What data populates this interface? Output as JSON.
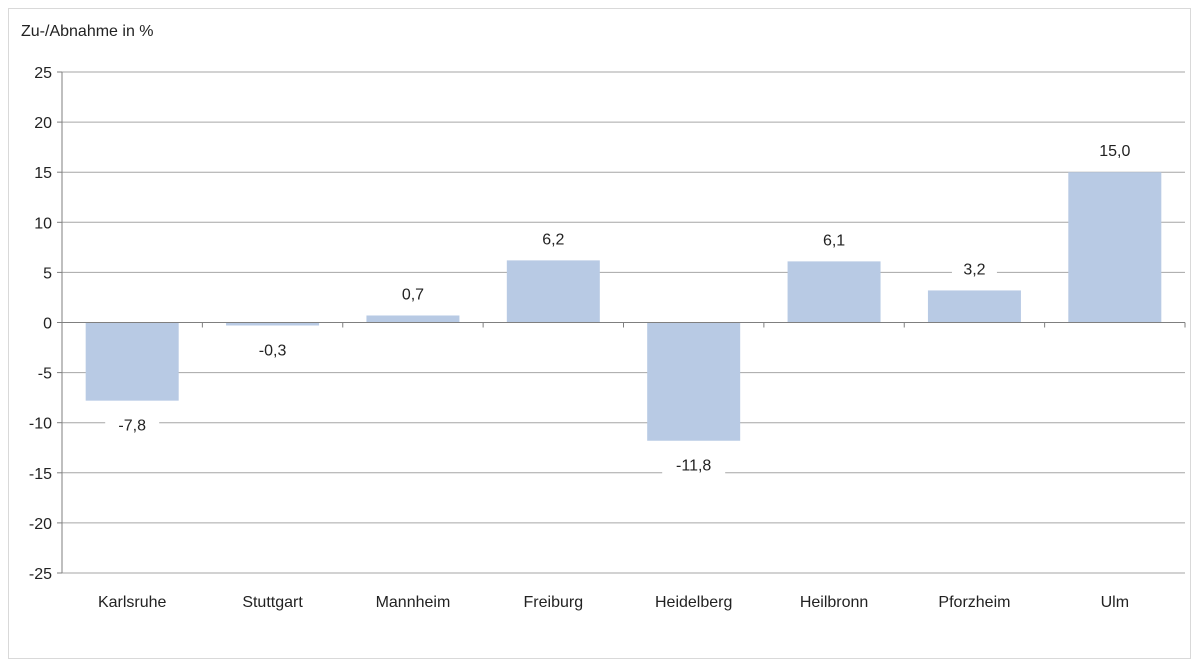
{
  "chart_data": {
    "type": "bar",
    "title": "",
    "ylabel": "Zu-/Abnahme in %",
    "xlabel": "",
    "categories": [
      "Karlsruhe",
      "Stuttgart",
      "Mannheim",
      "Freiburg",
      "Heidelberg",
      "Heilbronn",
      "Pforzheim",
      "Ulm"
    ],
    "values": [
      -7.8,
      -0.3,
      0.7,
      6.2,
      -11.8,
      6.1,
      3.2,
      15.0
    ],
    "value_labels": [
      "-7,8",
      "-0,3",
      "0,7",
      "6,2",
      "-11,8",
      "6,1",
      "3,2",
      "15,0"
    ],
    "ylim": [
      -25,
      25
    ],
    "yticks": [
      25,
      20,
      15,
      10,
      5,
      0,
      -5,
      -10,
      -15,
      -20,
      -25
    ],
    "ytick_labels": [
      "25",
      "20",
      "15",
      "10",
      "5",
      "0",
      "-5",
      "-10",
      "-15",
      "-20",
      "-25"
    ],
    "grid": true,
    "legend": "none",
    "colors": {
      "bar": "#b8cae4",
      "grid": "#a6a6a6",
      "axis": "#7f7f7f",
      "frame": "#d9d9d9"
    }
  }
}
